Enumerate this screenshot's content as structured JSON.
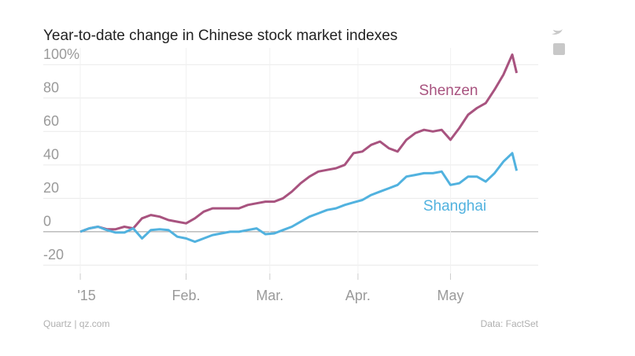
{
  "chart_data": {
    "type": "line",
    "title": "Year-to-date change in Chinese stock market indexes",
    "source": "Data: FactSet",
    "credit": "Quartz | qz.com",
    "x": [
      0,
      2,
      4,
      6,
      8,
      10,
      12,
      14,
      16,
      18,
      20,
      22,
      24,
      26,
      28,
      30,
      32,
      34,
      36,
      38,
      40,
      42,
      44,
      46,
      48,
      50,
      52,
      54,
      56,
      58,
      60,
      62,
      64,
      66,
      68,
      70,
      72,
      74,
      76,
      78,
      80,
      82,
      84,
      86,
      88,
      90,
      92,
      94,
      96,
      98,
      99
    ],
    "series": [
      {
        "name": "Shenzen",
        "color": "#a8537f",
        "values": [
          0,
          2,
          3,
          1.5,
          1.5,
          3,
          2,
          8,
          10,
          9,
          7,
          6,
          5,
          8,
          12,
          14,
          14,
          14,
          14,
          16,
          17,
          18,
          18,
          20,
          24,
          29,
          33,
          36,
          37,
          38,
          40,
          47,
          48,
          52,
          54,
          50,
          48,
          55,
          59,
          61,
          60,
          61,
          55,
          62,
          70,
          74,
          77,
          85,
          94,
          106,
          95
        ]
      },
      {
        "name": "Shanghai",
        "color": "#51b2df",
        "values": [
          0,
          2,
          3,
          1,
          -0.5,
          -0.5,
          2,
          -4,
          1,
          1.5,
          1,
          -3,
          -4,
          -6,
          -4,
          -2,
          -1,
          0,
          0,
          1,
          2,
          -1.5,
          -1,
          1,
          3,
          6,
          9,
          11,
          13,
          14,
          16,
          17.5,
          19,
          22,
          24,
          26,
          28,
          33,
          34,
          35,
          35,
          36,
          28,
          29,
          33,
          33,
          30,
          35,
          42,
          47,
          36.5
        ]
      }
    ],
    "xlim": [
      -8.4,
      103.9
    ],
    "xticks": [
      {
        "value": 0,
        "label": "'15"
      },
      {
        "value": 24,
        "label": "Feb."
      },
      {
        "value": 43,
        "label": "Mar."
      },
      {
        "value": 63,
        "label": "Apr."
      },
      {
        "value": 84,
        "label": "May"
      }
    ],
    "ylim": [
      -25,
      110
    ],
    "yticks": [
      -20,
      0,
      20,
      40,
      60,
      80,
      {
        "value": 100,
        "label": "100%"
      }
    ],
    "grid": true
  }
}
